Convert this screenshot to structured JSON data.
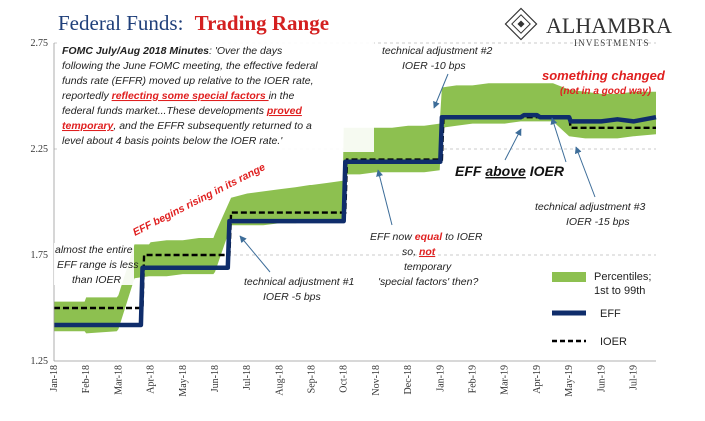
{
  "title": {
    "part1": "Federal Funds:",
    "part2": "Trading Range",
    "color1": "#1f3f7a",
    "color2": "#d42020"
  },
  "logo": {
    "name": "ALHAMBRA",
    "sub": "INVESTMENTS"
  },
  "colors": {
    "band": "#8dc050",
    "eff": "#0f2d6b",
    "ioer": "#000000",
    "red": "#e02020",
    "arrow": "#3d6d99"
  },
  "chart_data": {
    "type": "area",
    "x_tick_labels": [
      "Jan-18",
      "Feb-18",
      "Mar-18",
      "Apr-18",
      "May-18",
      "Jun-18",
      "Jul-18",
      "Aug-18",
      "Sep-18",
      "Oct-18",
      "Nov-18",
      "Dec-18",
      "Jan-19",
      "Feb-19",
      "Mar-19",
      "Apr-19",
      "May-19",
      "Jun-19",
      "Jul-19"
    ],
    "y_tick_labels": [
      "2.75",
      "2.25",
      "1.75",
      "1.25"
    ],
    "ylim": [
      1.25,
      2.75
    ],
    "xlim": [
      0,
      18.7
    ],
    "grid": "horizontal dashed",
    "series": [
      {
        "name": "Percentiles; 1st to 99th",
        "kind": "band",
        "x": [
          0,
          0.95,
          1.0,
          1.95,
          2.0,
          2.5,
          2.95,
          3.0,
          3.5,
          4.0,
          4.5,
          4.95,
          5.0,
          5.5,
          6.0,
          6.5,
          7.0,
          7.5,
          7.95,
          8.0,
          8.5,
          8.97,
          9.0,
          9.5,
          10.0,
          10.5,
          11.0,
          11.5,
          11.98,
          12.05,
          12.5,
          13.0,
          13.5,
          14.0,
          14.5,
          15.0,
          15.5,
          16.0,
          16.5,
          17.0,
          17.5,
          18.0,
          18.7
        ],
        "low": [
          1.39,
          1.39,
          1.38,
          1.39,
          1.4,
          1.64,
          1.65,
          1.65,
          1.65,
          1.66,
          1.66,
          1.66,
          1.67,
          1.89,
          1.89,
          1.89,
          1.9,
          1.9,
          1.91,
          1.91,
          1.91,
          1.91,
          2.13,
          2.13,
          2.14,
          2.14,
          2.14,
          2.14,
          2.15,
          2.35,
          2.36,
          2.37,
          2.37,
          2.37,
          2.38,
          2.38,
          2.38,
          2.31,
          2.3,
          2.3,
          2.3,
          2.31,
          2.32
        ],
        "high": [
          1.53,
          1.53,
          1.55,
          1.55,
          1.56,
          1.8,
          1.8,
          1.81,
          1.82,
          1.82,
          1.83,
          1.83,
          1.85,
          2.02,
          2.04,
          2.05,
          2.06,
          2.07,
          2.08,
          2.08,
          2.09,
          2.1,
          2.35,
          2.35,
          2.35,
          2.35,
          2.36,
          2.36,
          2.37,
          2.54,
          2.55,
          2.55,
          2.56,
          2.56,
          2.56,
          2.56,
          2.56,
          2.53,
          2.52,
          2.51,
          2.51,
          2.52,
          2.52
        ]
      },
      {
        "name": "EFF",
        "kind": "line",
        "x": [
          0,
          2.0,
          2.05,
          2.7,
          2.75,
          5.4,
          5.45,
          9.0,
          9.05,
          12.0,
          12.05,
          14.5,
          14.6,
          15.0,
          15.1,
          16.0,
          16.05,
          17.0,
          17.5,
          18.0,
          18.7
        ],
        "y": [
          1.42,
          1.42,
          1.42,
          1.42,
          1.69,
          1.69,
          1.91,
          1.91,
          2.19,
          2.19,
          2.4,
          2.4,
          2.41,
          2.41,
          2.4,
          2.4,
          2.38,
          2.38,
          2.39,
          2.38,
          2.4
        ]
      },
      {
        "name": "IOER",
        "kind": "line-dashed",
        "x": [
          0,
          2.75,
          2.8,
          5.45,
          5.5,
          9.05,
          9.1,
          12.05,
          12.1,
          16.0,
          16.05,
          18.7
        ],
        "y": [
          1.5,
          1.5,
          1.75,
          1.75,
          1.95,
          1.95,
          2.2,
          2.2,
          2.4,
          2.4,
          2.35,
          2.35
        ]
      }
    ],
    "legend": {
      "placement": "bottom-right",
      "band_label_1": "Percentiles;",
      "band_label_2": "1st to 99th",
      "eff_label": "EFF",
      "ioer_label": "IOER"
    }
  },
  "annotations": {
    "fomc": {
      "l1a": "FOMC July/Aug 2018 Minutes",
      "l1b": ": 'Over the days",
      "l2": "following the June FOMC meeting, the effective federal",
      "l3": "funds rate (EFFR) moved up relative to the IOER rate,",
      "l4a": "reportedly ",
      "l4b": "reflecting some special factors ",
      "l4c": "in the",
      "l5a": "federal funds market...These developments ",
      "l5b": "proved",
      "l6a": "temporary",
      "l6b": ", and the EFFR subsequently returned to a",
      "l7": "level about 4 basis points below the IOER rate.'"
    },
    "tech2_l1": "technical adjustment #2",
    "tech2_l2": "IOER -10 bps",
    "something_l1": "something changed",
    "something_l2": "(not in a good way)",
    "eff_above_a": "EFF ",
    "eff_above_b": "above",
    "eff_above_c": " IOER",
    "rising": "EFF begins rising in its range",
    "almost_l1": "almost the entire",
    "almost_l2": "EFF range is less",
    "almost_l3": "than IOER",
    "tech1_l1": "technical adjustment #1",
    "tech1_l2": "IOER -5 bps",
    "equal_l1a": "EFF now ",
    "equal_l1b": "equal",
    "equal_l1c": " to IOER",
    "equal_l2a": "so, ",
    "equal_l2b": "not",
    "equal_l3": "temporary",
    "equal_l4": "'special factors' then?",
    "tech3_l1": "technical adjustment #3",
    "tech3_l2": "IOER -15 bps"
  }
}
